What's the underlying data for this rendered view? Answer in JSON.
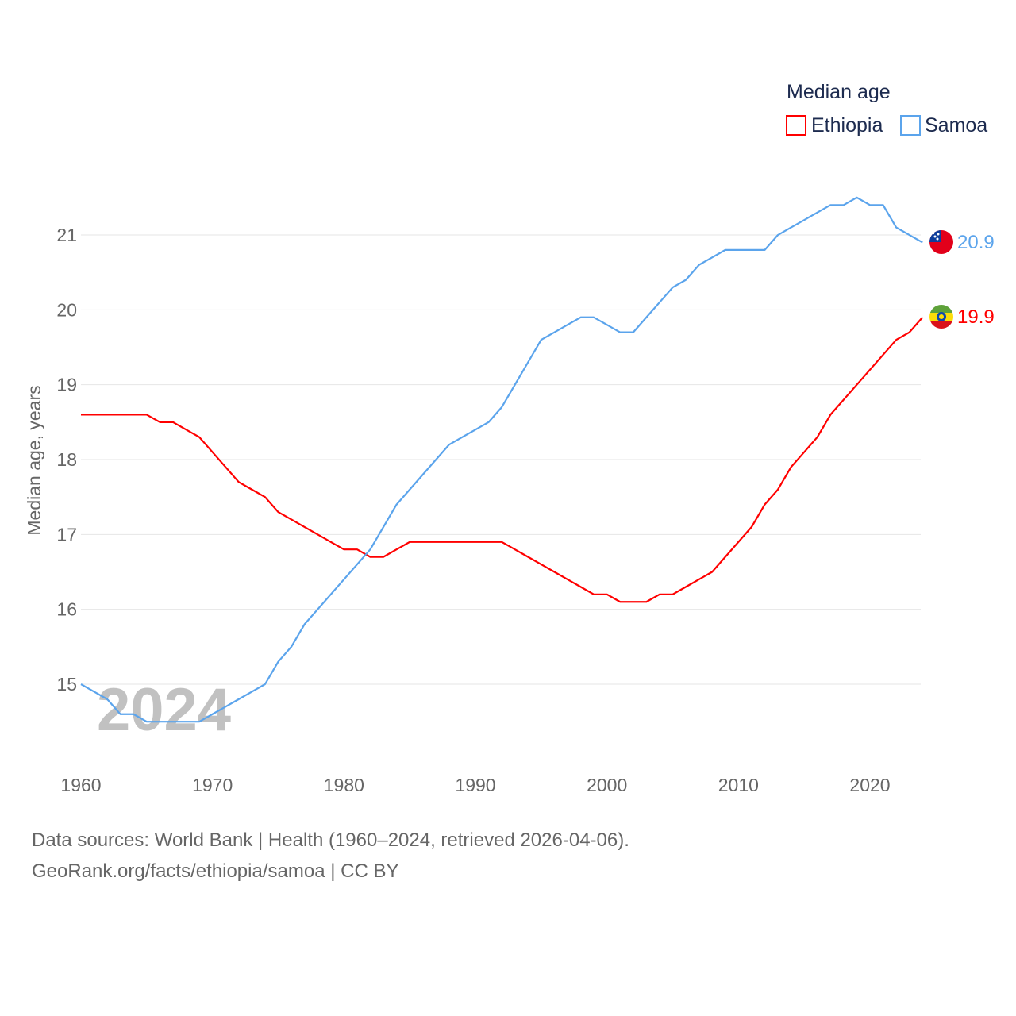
{
  "chart_data": {
    "type": "line",
    "title": "Median age",
    "xlabel": "",
    "ylabel": "Median age, years",
    "xlim": [
      1960,
      2024
    ],
    "ylim": [
      14,
      21.7
    ],
    "x_ticks": [
      "1960",
      "1970",
      "1980",
      "1990",
      "2000",
      "2010",
      "2020"
    ],
    "y_ticks": [
      "15",
      "16",
      "17",
      "18",
      "19",
      "20",
      "21"
    ],
    "grid": true,
    "legend_position": "top-right",
    "year_watermark": "2024",
    "x": [
      1960,
      1961,
      1962,
      1963,
      1964,
      1965,
      1966,
      1967,
      1968,
      1969,
      1970,
      1971,
      1972,
      1973,
      1974,
      1975,
      1976,
      1977,
      1978,
      1979,
      1980,
      1981,
      1982,
      1983,
      1984,
      1985,
      1986,
      1987,
      1988,
      1989,
      1990,
      1991,
      1992,
      1993,
      1994,
      1995,
      1996,
      1997,
      1998,
      1999,
      2000,
      2001,
      2002,
      2003,
      2004,
      2005,
      2006,
      2007,
      2008,
      2009,
      2010,
      2011,
      2012,
      2013,
      2014,
      2015,
      2016,
      2017,
      2018,
      2019,
      2020,
      2021,
      2022,
      2023,
      2024
    ],
    "series": [
      {
        "name": "Ethiopia",
        "color": "#ff0000",
        "end_label": "19.9",
        "flag": "ethiopia-flag",
        "values": [
          18.6,
          18.6,
          18.6,
          18.6,
          18.6,
          18.6,
          18.5,
          18.5,
          18.4,
          18.3,
          18.1,
          17.9,
          17.7,
          17.6,
          17.5,
          17.3,
          17.2,
          17.1,
          17.0,
          16.9,
          16.8,
          16.8,
          16.7,
          16.7,
          16.8,
          16.9,
          16.9,
          16.9,
          16.9,
          16.9,
          16.9,
          16.9,
          16.9,
          16.8,
          16.7,
          16.6,
          16.5,
          16.4,
          16.3,
          16.2,
          16.2,
          16.1,
          16.1,
          16.1,
          16.2,
          16.2,
          16.3,
          16.4,
          16.5,
          16.7,
          16.9,
          17.1,
          17.4,
          17.6,
          17.9,
          18.1,
          18.3,
          18.6,
          18.8,
          19.0,
          19.2,
          19.4,
          19.6,
          19.7,
          19.9
        ]
      },
      {
        "name": "Samoa",
        "color": "#5ba4ec",
        "end_label": "20.9",
        "flag": "samoa-flag",
        "values": [
          15.0,
          14.9,
          14.8,
          14.6,
          14.6,
          14.5,
          14.5,
          14.5,
          14.5,
          14.5,
          14.6,
          14.7,
          14.8,
          14.9,
          15.0,
          15.3,
          15.5,
          15.8,
          16.0,
          16.2,
          16.4,
          16.6,
          16.8,
          17.1,
          17.4,
          17.6,
          17.8,
          18.0,
          18.2,
          18.3,
          18.4,
          18.5,
          18.7,
          19.0,
          19.3,
          19.6,
          19.7,
          19.8,
          19.9,
          19.9,
          19.8,
          19.7,
          19.7,
          19.9,
          20.1,
          20.3,
          20.4,
          20.6,
          20.7,
          20.8,
          20.8,
          20.8,
          20.8,
          21.0,
          21.1,
          21.2,
          21.3,
          21.4,
          21.4,
          21.5,
          21.4,
          21.4,
          21.1,
          21.0,
          20.9
        ]
      }
    ]
  },
  "footer": {
    "line1": "Data sources: World Bank | Health (1960–2024, retrieved 2026-04-06).",
    "line2": "GeoRank.org/facts/ethiopia/samoa | CC BY"
  }
}
